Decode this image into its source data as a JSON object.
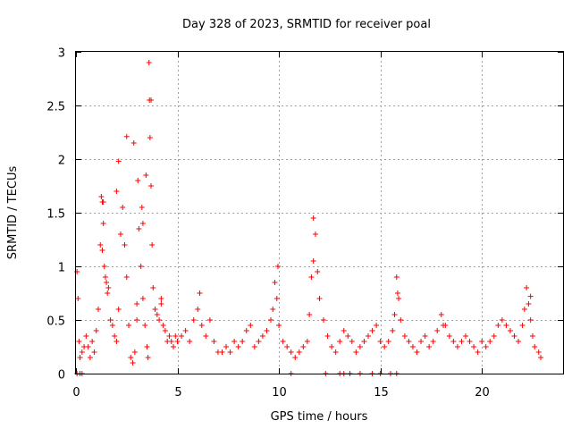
{
  "chart_data": {
    "type": "scatter",
    "title": "Day 328 of 2023, SRMTID for receiver poal",
    "xlabel": "GPS time / hours",
    "ylabel": "SRMTID / TECUs",
    "xlim": [
      0,
      24
    ],
    "ylim": [
      0,
      3
    ],
    "xticks": [
      0,
      5,
      10,
      15,
      20
    ],
    "yticks": [
      0,
      0.5,
      1,
      1.5,
      2,
      2.5,
      3
    ],
    "xtick_labels": [
      "0",
      "5",
      "10",
      "15",
      "20"
    ],
    "ytick_labels": [
      "0",
      "0.5",
      "1",
      "1.5",
      "2",
      "2.5",
      "3"
    ],
    "grid": true,
    "marker": "+",
    "color": "#ff0000",
    "series": [
      {
        "name": "SRMTID",
        "x": [
          0.05,
          0.1,
          0.15,
          0.2,
          0.3,
          0.4,
          0.5,
          0.6,
          0.7,
          0.8,
          0.9,
          1.0,
          1.1,
          1.2,
          1.25,
          1.3,
          1.35,
          1.4,
          1.45,
          1.5,
          1.55,
          1.6,
          1.7,
          1.8,
          1.9,
          2.0,
          2.1,
          2.2,
          2.3,
          2.4,
          2.5,
          2.6,
          2.7,
          2.8,
          2.9,
          3.0,
          3.05,
          3.1,
          3.2,
          3.3,
          3.4,
          3.5,
          3.55,
          3.6,
          3.62,
          3.65,
          3.7,
          3.75,
          3.8,
          3.9,
          4.0,
          4.1,
          4.2,
          4.3,
          4.4,
          4.5,
          4.6,
          4.7,
          4.8,
          4.9,
          5.0,
          5.2,
          5.4,
          5.6,
          5.8,
          6.0,
          6.1,
          6.2,
          6.4,
          6.6,
          6.8,
          7.0,
          7.2,
          7.4,
          7.6,
          7.8,
          8.0,
          8.2,
          8.4,
          8.6,
          8.8,
          9.0,
          9.2,
          9.4,
          9.6,
          9.7,
          9.8,
          9.9,
          10.0,
          10.2,
          10.4,
          10.6,
          10.8,
          11.0,
          11.2,
          11.4,
          11.5,
          11.6,
          11.7,
          11.8,
          11.9,
          12.0,
          12.2,
          12.4,
          12.6,
          12.8,
          13.0,
          13.2,
          13.4,
          13.6,
          13.8,
          14.0,
          14.2,
          14.4,
          14.6,
          14.8,
          15.0,
          15.2,
          15.4,
          15.6,
          15.7,
          15.8,
          15.9,
          16.0,
          16.2,
          16.4,
          16.6,
          16.8,
          17.0,
          17.2,
          17.4,
          17.6,
          17.8,
          18.0,
          18.2,
          18.4,
          18.6,
          18.8,
          19.0,
          19.2,
          19.4,
          19.6,
          19.8,
          20.0,
          20.2,
          20.4,
          20.6,
          20.8,
          21.0,
          21.2,
          21.4,
          21.6,
          21.8,
          22.0,
          22.1,
          22.2,
          22.3,
          22.4,
          22.5,
          22.6,
          22.8,
          22.9,
          0.05,
          0.2,
          0.3,
          10.6,
          13.0,
          13.2,
          13.5,
          14.0,
          14.6,
          15.0,
          15.5,
          15.8,
          12.3,
          1.3,
          2.1,
          2.5,
          3.0,
          3.25,
          3.45,
          3.7,
          1.35,
          2.0,
          2.85,
          3.3,
          4.2,
          9.95,
          11.7,
          15.85,
          18.1,
          22.4
        ],
        "y": [
          0.95,
          0.7,
          0.3,
          0.15,
          0.2,
          0.25,
          0.35,
          0.25,
          0.15,
          0.3,
          0.2,
          0.4,
          0.6,
          1.2,
          1.65,
          1.6,
          1.4,
          1.0,
          0.9,
          0.85,
          0.75,
          0.8,
          0.5,
          0.45,
          0.35,
          0.3,
          0.6,
          1.3,
          1.55,
          1.2,
          0.9,
          0.45,
          0.15,
          0.1,
          0.2,
          0.5,
          1.8,
          1.35,
          1.0,
          0.7,
          0.45,
          0.25,
          0.15,
          2.9,
          2.55,
          2.2,
          1.75,
          1.2,
          0.8,
          0.6,
          0.55,
          0.5,
          0.65,
          0.45,
          0.4,
          0.3,
          0.35,
          0.3,
          0.25,
          0.35,
          0.3,
          0.35,
          0.4,
          0.3,
          0.5,
          0.6,
          0.75,
          0.45,
          0.35,
          0.5,
          0.3,
          0.2,
          0.2,
          0.25,
          0.2,
          0.3,
          0.25,
          0.3,
          0.4,
          0.45,
          0.25,
          0.3,
          0.35,
          0.4,
          0.5,
          0.6,
          0.85,
          0.7,
          0.45,
          0.3,
          0.25,
          0.2,
          0.15,
          0.2,
          0.25,
          0.3,
          0.55,
          0.9,
          1.45,
          1.3,
          0.95,
          0.7,
          0.5,
          0.35,
          0.25,
          0.2,
          0.3,
          0.4,
          0.35,
          0.3,
          0.2,
          0.25,
          0.3,
          0.35,
          0.4,
          0.45,
          0.3,
          0.25,
          0.3,
          0.4,
          0.55,
          0.9,
          0.7,
          0.5,
          0.35,
          0.3,
          0.25,
          0.2,
          0.3,
          0.35,
          0.25,
          0.3,
          0.4,
          0.55,
          0.45,
          0.35,
          0.3,
          0.25,
          0.3,
          0.35,
          0.3,
          0.25,
          0.2,
          0.3,
          0.25,
          0.3,
          0.35,
          0.45,
          0.5,
          0.45,
          0.4,
          0.35,
          0.3,
          0.45,
          0.6,
          0.8,
          0.65,
          0.5,
          0.35,
          0.25,
          0.2,
          0.15,
          0.0,
          0.0,
          0.0,
          0.0,
          0.0,
          0.0,
          0.0,
          0.0,
          0.0,
          0.0,
          0.0,
          0.0,
          0.0,
          1.15,
          1.98,
          2.21,
          0.65,
          1.55,
          1.85,
          2.55,
          1.6,
          1.7,
          2.15,
          1.4,
          0.7,
          1.0,
          1.05,
          0.75,
          0.45,
          0.72
        ]
      }
    ]
  }
}
